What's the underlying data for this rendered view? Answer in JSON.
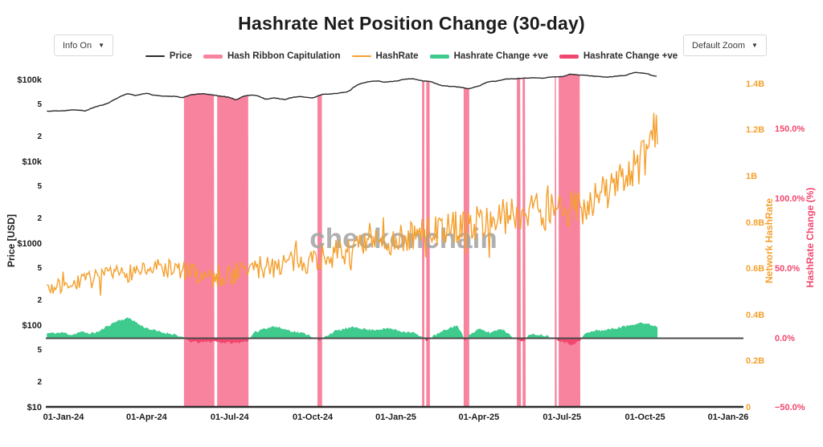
{
  "controls": {
    "info_dropdown": {
      "label": "Info On",
      "caret": "▼"
    },
    "zoom_dropdown": {
      "label": "Default Zoom",
      "caret": "▼"
    }
  },
  "legend": {
    "items": [
      {
        "label": "Price",
        "color": "#2b2b2b",
        "thick": false
      },
      {
        "label": "Hash Ribbon Capitulation",
        "color": "#f7839e",
        "thick": true
      },
      {
        "label": "HashRate",
        "color": "#f5a02d",
        "thick": false
      },
      {
        "label": "Hashrate Change +ve",
        "color": "#3ecb8d",
        "thick": true
      },
      {
        "label": "Hashrate Change +ve",
        "color": "#f1476f",
        "thick": true
      }
    ]
  },
  "watermark": {
    "text": "checkonchain",
    "color": "#a3a3a3"
  },
  "chart_data": {
    "type": "line",
    "title": "Hashrate Net Position Change (30-day)",
    "start_date": "01-Jan-24",
    "end_month_offset": 21.45,
    "x_axis": {
      "ticks": [
        {
          "label": "01-Jan-24",
          "month": 0
        },
        {
          "label": "01-Apr-24",
          "month": 3
        },
        {
          "label": "01-Jul-24",
          "month": 6
        },
        {
          "label": "01-Oct-24",
          "month": 9
        },
        {
          "label": "01-Jan-25",
          "month": 12
        },
        {
          "label": "01-Apr-25",
          "month": 15
        },
        {
          "label": "01-Jul-25",
          "month": 18
        },
        {
          "label": "01-Oct-25",
          "month": 21
        },
        {
          "label": "01-Jan-26",
          "month": 24
        }
      ]
    },
    "price_axis": {
      "label": "Price [USD]",
      "scale": "log",
      "color": "#1c1c1c",
      "ticks": [
        {
          "label": "$100k",
          "value": 100000,
          "major": true
        },
        {
          "label": "5",
          "value": 50000,
          "major": false
        },
        {
          "label": "2",
          "value": 20000,
          "major": false
        },
        {
          "label": "$10k",
          "value": 10000,
          "major": true
        },
        {
          "label": "5",
          "value": 5000,
          "major": false
        },
        {
          "label": "2",
          "value": 2000,
          "major": false
        },
        {
          "label": "$1000",
          "value": 1000,
          "major": true
        },
        {
          "label": "5",
          "value": 500,
          "major": false
        },
        {
          "label": "2",
          "value": 200,
          "major": false
        },
        {
          "label": "$100",
          "value": 100,
          "major": true
        },
        {
          "label": "5",
          "value": 50,
          "major": false
        },
        {
          "label": "2",
          "value": 20,
          "major": false
        },
        {
          "label": "$10",
          "value": 10,
          "major": true
        }
      ]
    },
    "hashrate_axis": {
      "label": "Network HashRate",
      "color": "#f5a02d",
      "unit": "B",
      "ticks": [
        {
          "label": "0",
          "value": 0
        },
        {
          "label": "0.2B",
          "value": 0.2
        },
        {
          "label": "0.4B",
          "value": 0.4
        },
        {
          "label": "0.6B",
          "value": 0.6
        },
        {
          "label": "0.8B",
          "value": 0.8
        },
        {
          "label": "1B",
          "value": 1.0
        },
        {
          "label": "1.2B",
          "value": 1.2
        },
        {
          "label": "1.4B",
          "value": 1.4
        }
      ]
    },
    "change_axis": {
      "label": "HashRate Change (%)",
      "color": "#f1476f",
      "ticks": [
        {
          "label": "−50.0%",
          "value": -50
        },
        {
          "label": "0.0%",
          "value": 0
        },
        {
          "label": "50.0%",
          "value": 50
        },
        {
          "label": "100.0%",
          "value": 100
        },
        {
          "label": "150.0%",
          "value": 150
        }
      ]
    },
    "capitulation_bands": {
      "name": "Hash Ribbon Capitulation",
      "color": "#f7839e",
      "ranges_months": [
        [
          4.35,
          5.45
        ],
        [
          5.55,
          6.68
        ],
        [
          9.17,
          9.34
        ],
        [
          12.95,
          13.03
        ],
        [
          13.1,
          13.23
        ],
        [
          14.45,
          14.65
        ],
        [
          16.37,
          16.52
        ],
        [
          16.58,
          16.69
        ],
        [
          17.74,
          17.81
        ],
        [
          17.88,
          18.66
        ]
      ]
    },
    "series": {
      "price_usd": {
        "name": "Price",
        "color": "#2b2b2b",
        "points": [
          [
            -0.6,
            42000
          ],
          [
            0,
            42500
          ],
          [
            0.4,
            43500
          ],
          [
            0.8,
            42200
          ],
          [
            1.2,
            48000
          ],
          [
            1.6,
            52000
          ],
          [
            2,
            62000
          ],
          [
            2.3,
            68500
          ],
          [
            2.6,
            65000
          ],
          [
            3,
            69000
          ],
          [
            3.3,
            65500
          ],
          [
            3.6,
            64000
          ],
          [
            4,
            63500
          ],
          [
            4.3,
            61500
          ],
          [
            4.6,
            66000
          ],
          [
            5,
            68500
          ],
          [
            5.3,
            67000
          ],
          [
            5.6,
            64500
          ],
          [
            6,
            62000
          ],
          [
            6.2,
            57500
          ],
          [
            6.5,
            63500
          ],
          [
            6.8,
            66500
          ],
          [
            7,
            64500
          ],
          [
            7.3,
            58500
          ],
          [
            7.6,
            61000
          ],
          [
            8,
            58000
          ],
          [
            8.3,
            62500
          ],
          [
            8.6,
            63000
          ],
          [
            9,
            61000
          ],
          [
            9.3,
            66500
          ],
          [
            9.6,
            68000
          ],
          [
            10,
            70000
          ],
          [
            10.3,
            73000
          ],
          [
            10.6,
            88000
          ],
          [
            11,
            95500
          ],
          [
            11.3,
            98000
          ],
          [
            11.6,
            95000
          ],
          [
            12,
            97500
          ],
          [
            12.3,
            102500
          ],
          [
            12.6,
            104500
          ],
          [
            13,
            97500
          ],
          [
            13.3,
            96000
          ],
          [
            13.6,
            86500
          ],
          [
            14,
            84000
          ],
          [
            14.3,
            82500
          ],
          [
            14.6,
            78500
          ],
          [
            15,
            85000
          ],
          [
            15.3,
            94500
          ],
          [
            15.6,
            97500
          ],
          [
            16,
            103500
          ],
          [
            16.3,
            104500
          ],
          [
            16.6,
            106000
          ],
          [
            17,
            108000
          ],
          [
            17.3,
            105500
          ],
          [
            17.6,
            109000
          ],
          [
            18,
            110500
          ],
          [
            18.3,
            118500
          ],
          [
            18.6,
            116500
          ],
          [
            19,
            113500
          ],
          [
            19.3,
            111500
          ],
          [
            19.6,
            109000
          ],
          [
            20,
            112500
          ],
          [
            20.3,
            115000
          ],
          [
            20.6,
            124500
          ],
          [
            21,
            122500
          ],
          [
            21.2,
            116000
          ],
          [
            21.45,
            111500
          ]
        ]
      },
      "hashrate_b": {
        "name": "HashRate",
        "color": "#f5a02d",
        "noise_amp_b": 0.036,
        "points": [
          [
            -0.6,
            0.515
          ],
          [
            0,
            0.525
          ],
          [
            0.5,
            0.54
          ],
          [
            1,
            0.555
          ],
          [
            1.5,
            0.565
          ],
          [
            2,
            0.575
          ],
          [
            2.5,
            0.59
          ],
          [
            3,
            0.6
          ],
          [
            3.5,
            0.605
          ],
          [
            4,
            0.6
          ],
          [
            4.5,
            0.585
          ],
          [
            5,
            0.572
          ],
          [
            5.5,
            0.565
          ],
          [
            6,
            0.575
          ],
          [
            6.5,
            0.59
          ],
          [
            7,
            0.605
          ],
          [
            7.5,
            0.615
          ],
          [
            8,
            0.625
          ],
          [
            8.5,
            0.635
          ],
          [
            9,
            0.645
          ],
          [
            9.5,
            0.655
          ],
          [
            10,
            0.67
          ],
          [
            10.5,
            0.685
          ],
          [
            11,
            0.7
          ],
          [
            11.5,
            0.712
          ],
          [
            12,
            0.725
          ],
          [
            12.5,
            0.74
          ],
          [
            13,
            0.755
          ],
          [
            13.5,
            0.765
          ],
          [
            14,
            0.78
          ],
          [
            14.5,
            0.79
          ],
          [
            15,
            0.8
          ],
          [
            15.5,
            0.815
          ],
          [
            16,
            0.83
          ],
          [
            16.5,
            0.845
          ],
          [
            17,
            0.85
          ],
          [
            17.5,
            0.845
          ],
          [
            18,
            0.84
          ],
          [
            18.5,
            0.865
          ],
          [
            19,
            0.89
          ],
          [
            19.5,
            0.93
          ],
          [
            20,
            0.97
          ],
          [
            20.5,
            1.02
          ],
          [
            21,
            1.08
          ],
          [
            21.35,
            1.2
          ],
          [
            21.45,
            1.16
          ]
        ]
      },
      "change_pct": {
        "name": "Hashrate Change",
        "pos_color": "#3ecb8d",
        "neg_color": "#f1476f",
        "points": [
          [
            -0.6,
            3.5
          ],
          [
            0,
            4
          ],
          [
            0.3,
            2.5
          ],
          [
            0.6,
            4.5
          ],
          [
            1,
            3.5
          ],
          [
            1.3,
            5
          ],
          [
            1.6,
            9
          ],
          [
            2,
            13
          ],
          [
            2.4,
            14.5
          ],
          [
            2.8,
            9
          ],
          [
            3.2,
            6
          ],
          [
            3.6,
            4
          ],
          [
            4,
            3
          ],
          [
            4.35,
            0
          ],
          [
            4.6,
            -2.5
          ],
          [
            5,
            -3
          ],
          [
            5.45,
            -2
          ],
          [
            5.7,
            -3
          ],
          [
            6.2,
            -3.5
          ],
          [
            6.68,
            -1.5
          ],
          [
            6.9,
            4
          ],
          [
            7.2,
            7
          ],
          [
            7.6,
            8.5
          ],
          [
            8,
            6.5
          ],
          [
            8.4,
            4.5
          ],
          [
            8.8,
            3
          ],
          [
            9.1,
            0
          ],
          [
            9.25,
            -2
          ],
          [
            9.5,
            2
          ],
          [
            9.8,
            5
          ],
          [
            10.2,
            7
          ],
          [
            10.6,
            8
          ],
          [
            11,
            6
          ],
          [
            11.4,
            6.5
          ],
          [
            11.8,
            7
          ],
          [
            12.2,
            5
          ],
          [
            12.6,
            4.5
          ],
          [
            12.9,
            1
          ],
          [
            13.1,
            -1.5
          ],
          [
            13.4,
            2
          ],
          [
            13.8,
            6
          ],
          [
            14.2,
            9.5
          ],
          [
            14.5,
            -1
          ],
          [
            14.7,
            3
          ],
          [
            15,
            6.5
          ],
          [
            15.4,
            4
          ],
          [
            15.8,
            7
          ],
          [
            16.1,
            3
          ],
          [
            16.4,
            -1.5
          ],
          [
            16.6,
            -2
          ],
          [
            16.8,
            2
          ],
          [
            17.1,
            3
          ],
          [
            17.4,
            2
          ],
          [
            17.8,
            -0.5
          ],
          [
            18,
            -2
          ],
          [
            18.3,
            -4.5
          ],
          [
            18.66,
            -2
          ],
          [
            18.8,
            3
          ],
          [
            19.2,
            5.5
          ],
          [
            19.6,
            6
          ],
          [
            20,
            7.5
          ],
          [
            20.4,
            9
          ],
          [
            20.8,
            11.5
          ],
          [
            21.1,
            10
          ],
          [
            21.45,
            8.5
          ]
        ]
      }
    }
  }
}
